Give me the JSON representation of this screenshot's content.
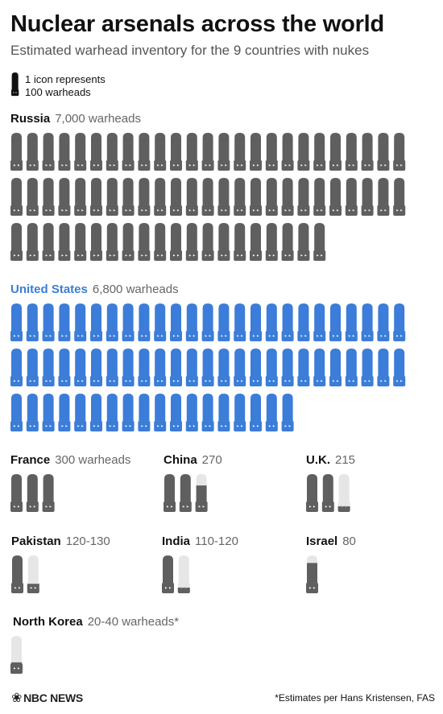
{
  "header": {
    "title": "Nuclear arsenals across the world",
    "subtitle": "Estimated warhead inventory for the 9 countries with nukes"
  },
  "legend": {
    "line1": "1 icon represents",
    "line2": "100 warheads"
  },
  "colors": {
    "default": "#5f5f5f",
    "us": "#3b7dd8",
    "partial": "#e6e6e6",
    "eyes": "#ffffff"
  },
  "footer": {
    "logo": "NBC NEWS",
    "note": "*Estimates per Hans Kristensen, FAS"
  },
  "chart_data": {
    "type": "pictogram",
    "unit_per_icon": 100,
    "countries": [
      {
        "name": "Russia",
        "label": "7,000 warheads",
        "value": 7000,
        "color": "default"
      },
      {
        "name": "United States",
        "label": "6,800 warheads",
        "value": 6800,
        "color": "us"
      },
      {
        "name": "France",
        "label": "300 warheads",
        "value": 300,
        "color": "default"
      },
      {
        "name": "China",
        "label": "270",
        "value": 270,
        "color": "default"
      },
      {
        "name": "U.K.",
        "label": "215",
        "value": 215,
        "color": "default"
      },
      {
        "name": "Pakistan",
        "label": "120-130",
        "value": 125,
        "color": "default"
      },
      {
        "name": "India",
        "label": "110-120",
        "value": 115,
        "color": "default"
      },
      {
        "name": "Israel",
        "label": "80",
        "value": 80,
        "color": "default"
      },
      {
        "name": "North Korea",
        "label": "20-40 warheads*",
        "value": 30,
        "color": "default"
      }
    ]
  }
}
